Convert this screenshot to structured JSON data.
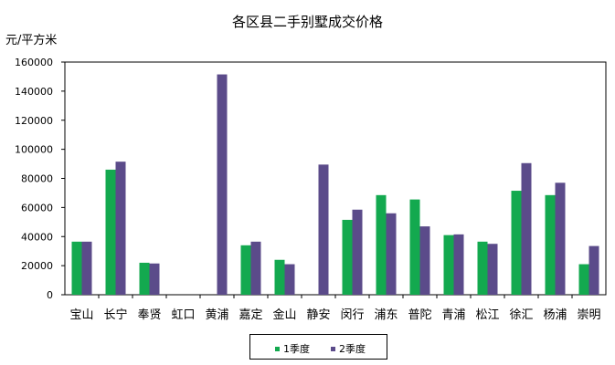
{
  "chart_data": {
    "type": "bar",
    "title": "各区县二手别墅成交价格",
    "ylabel": "元/平方米",
    "ylim": [
      0,
      160000
    ],
    "yticks": [
      0,
      20000,
      40000,
      60000,
      80000,
      100000,
      120000,
      140000,
      160000
    ],
    "categories": [
      "宝山",
      "长宁",
      "奉贤",
      "虹口",
      "黄浦",
      "嘉定",
      "金山",
      "静安",
      "闵行",
      "浦东",
      "普陀",
      "青浦",
      "松江",
      "徐汇",
      "杨浦",
      "崇明"
    ],
    "series": [
      {
        "name": "1季度",
        "color": "#13a94f",
        "values": [
          36500,
          86000,
          22000,
          0,
          0,
          34000,
          24000,
          0,
          51500,
          68500,
          65500,
          41000,
          36500,
          71500,
          68500,
          21000
        ]
      },
      {
        "name": "2季度",
        "color": "#5b4b8a",
        "values": [
          36500,
          91500,
          21500,
          0,
          151500,
          36500,
          21000,
          89500,
          58500,
          56000,
          47000,
          41500,
          35000,
          90500,
          77000,
          33500
        ]
      }
    ],
    "grid": false,
    "legend_position": "bottom"
  }
}
